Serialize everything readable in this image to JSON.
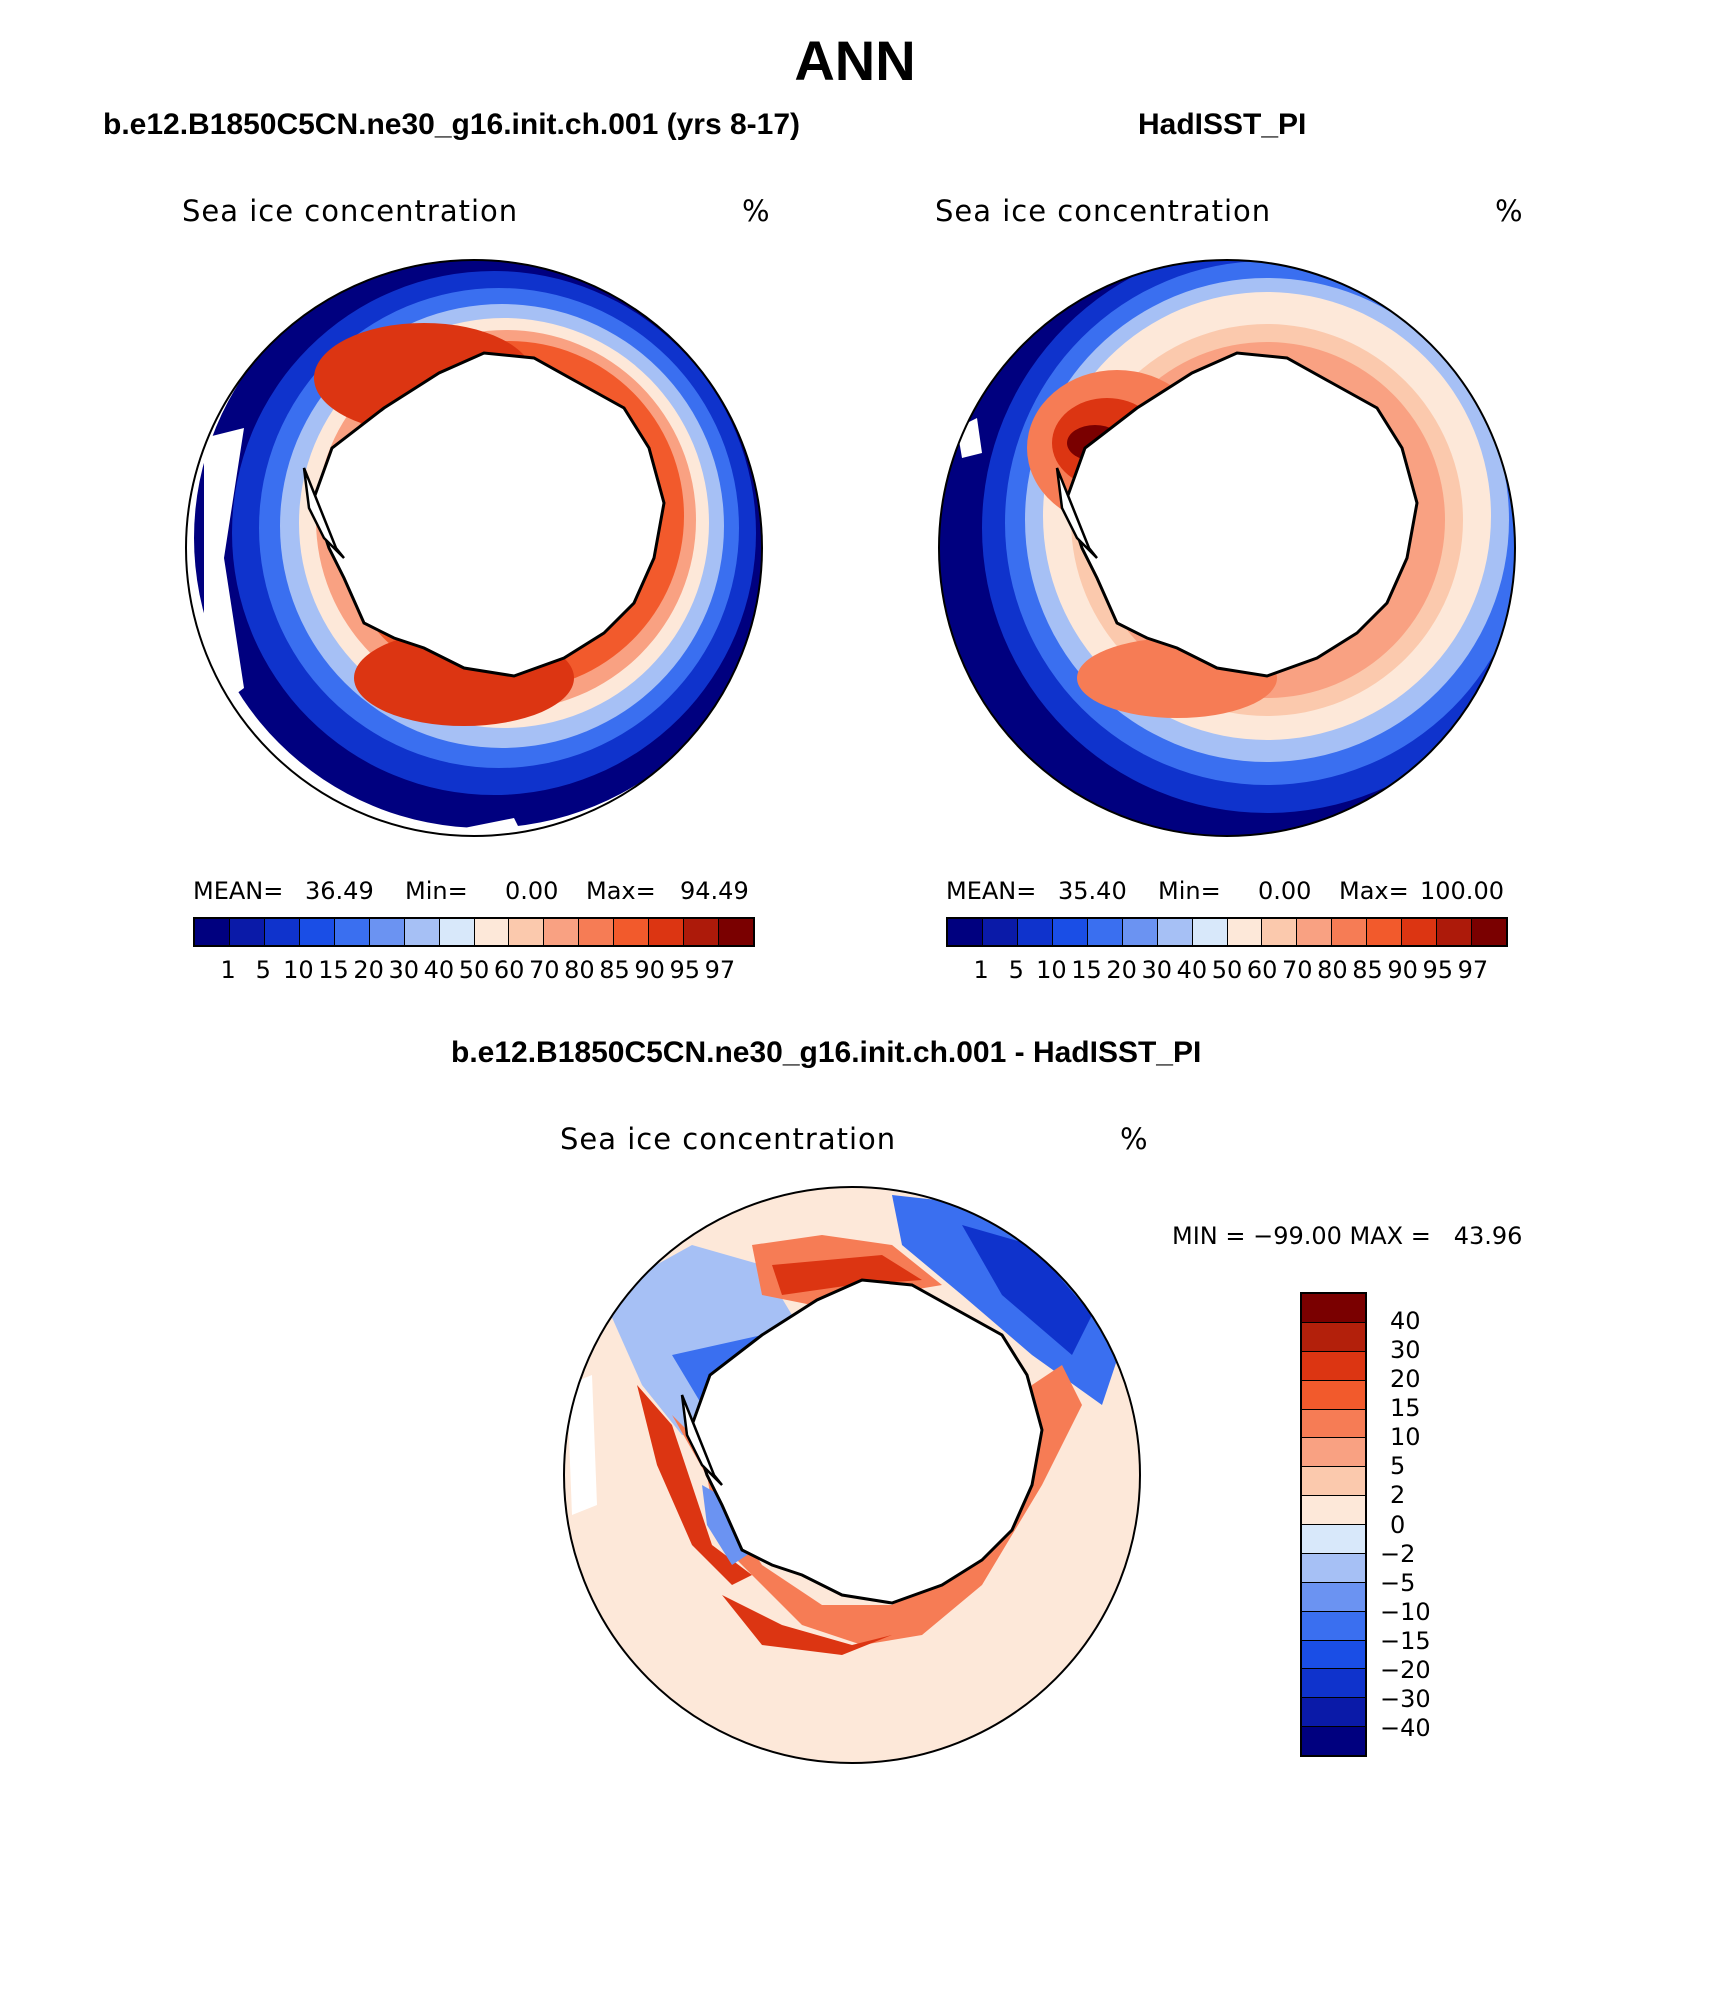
{
  "title": "ANN",
  "panels": [
    {
      "title": "b.e12.B1850C5CN.ne30_g16.init.ch.001 (yrs 8-17)",
      "variable": "Sea ice concentration",
      "units": "%",
      "stats": {
        "mean_label": "MEAN=",
        "mean": "36.49",
        "min_label": "Min=",
        "min": "0.00",
        "max_label": "Max=",
        "max": "94.49"
      }
    },
    {
      "title": "HadISST_PI",
      "variable": "Sea ice concentration",
      "units": "%",
      "stats": {
        "mean_label": "MEAN=",
        "mean": "35.40",
        "min_label": "Min=",
        "min": "0.00",
        "max_label": "Max=",
        "max": "100.00"
      }
    }
  ],
  "diff_panel": {
    "title": "b.e12.B1850C5CN.ne30_g16.init.ch.001 - HadISST_PI",
    "variable": "Sea ice concentration",
    "units": "%",
    "stats_text": "MIN = −99.00 MAX =   43.96"
  },
  "colorbar_concentration": {
    "levels": [
      "1",
      "5",
      "10",
      "15",
      "20",
      "30",
      "40",
      "50",
      "60",
      "70",
      "80",
      "85",
      "90",
      "95",
      "97"
    ],
    "colors": [
      "#00007f",
      "#0a1aa8",
      "#0f33cc",
      "#1a4ee6",
      "#3a6ff0",
      "#6b93f2",
      "#a6c0f5",
      "#d8e8fa",
      "#fde8d9",
      "#fbc9ad",
      "#f9a182",
      "#f67c55",
      "#f25a2c",
      "#dc3512",
      "#ad1a0a",
      "#7a0000"
    ]
  },
  "colorbar_difference": {
    "levels": [
      "40",
      "30",
      "20",
      "15",
      "10",
      "5",
      "2",
      "0",
      "−2",
      "−5",
      "−10",
      "−15",
      "−20",
      "−30",
      "−40"
    ],
    "colors": [
      "#7a0000",
      "#b3200b",
      "#dc3512",
      "#f25a2c",
      "#f67c55",
      "#f9a182",
      "#fbc9ad",
      "#fde8d9",
      "#d8e8fa",
      "#a6c0f5",
      "#6b93f2",
      "#3a6ff0",
      "#1a4ee6",
      "#0f33cc",
      "#0a1aa8",
      "#00007f"
    ]
  }
}
